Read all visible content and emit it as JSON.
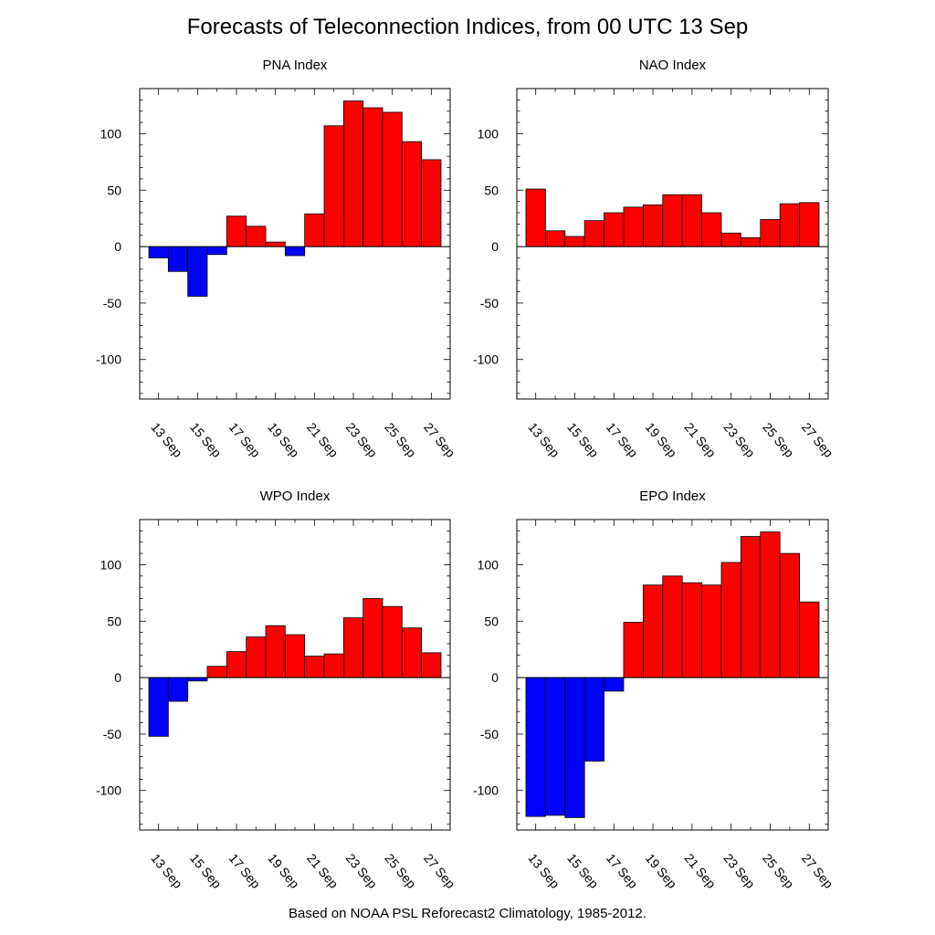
{
  "title": "Forecasts of Teleconnection Indices, from 00 UTC 13 Sep",
  "footer": "Based on NOAA PSL Reforecast2 Climatology, 1985-2012.",
  "colors": {
    "positive": "#ff0000",
    "negative": "#0000ff"
  },
  "chart_data": [
    {
      "type": "bar",
      "title": "PNA Index",
      "categories": [
        "13 Sep",
        "14 Sep",
        "15 Sep",
        "16 Sep",
        "17 Sep",
        "18 Sep",
        "19 Sep",
        "20 Sep",
        "21 Sep",
        "22 Sep",
        "23 Sep",
        "24 Sep",
        "25 Sep",
        "26 Sep",
        "27 Sep"
      ],
      "xticklabels": [
        "13 Sep",
        "15 Sep",
        "17 Sep",
        "19 Sep",
        "21 Sep",
        "23 Sep",
        "25 Sep",
        "27 Sep"
      ],
      "values": [
        -10,
        -22,
        -44,
        -7,
        27,
        18,
        4,
        -8,
        29,
        107,
        129,
        123,
        119,
        93,
        77
      ],
      "ylim": [
        -135,
        140
      ],
      "yticks": [
        -100,
        -50,
        0,
        50,
        100
      ]
    },
    {
      "type": "bar",
      "title": "NAO Index",
      "categories": [
        "13 Sep",
        "14 Sep",
        "15 Sep",
        "16 Sep",
        "17 Sep",
        "18 Sep",
        "19 Sep",
        "20 Sep",
        "21 Sep",
        "22 Sep",
        "23 Sep",
        "24 Sep",
        "25 Sep",
        "26 Sep",
        "27 Sep"
      ],
      "xticklabels": [
        "13 Sep",
        "15 Sep",
        "17 Sep",
        "19 Sep",
        "21 Sep",
        "23 Sep",
        "25 Sep",
        "27 Sep"
      ],
      "values": [
        51,
        14,
        9,
        23,
        30,
        35,
        37,
        46,
        46,
        30,
        12,
        8,
        24,
        38,
        39
      ],
      "ylim": [
        -135,
        140
      ],
      "yticks": [
        -100,
        -50,
        0,
        50,
        100
      ]
    },
    {
      "type": "bar",
      "title": "WPO Index",
      "categories": [
        "13 Sep",
        "14 Sep",
        "15 Sep",
        "16 Sep",
        "17 Sep",
        "18 Sep",
        "19 Sep",
        "20 Sep",
        "21 Sep",
        "22 Sep",
        "23 Sep",
        "24 Sep",
        "25 Sep",
        "26 Sep",
        "27 Sep"
      ],
      "xticklabels": [
        "13 Sep",
        "15 Sep",
        "17 Sep",
        "19 Sep",
        "21 Sep",
        "23 Sep",
        "25 Sep",
        "27 Sep"
      ],
      "values": [
        -52,
        -21,
        -3,
        10,
        23,
        36,
        46,
        38,
        19,
        21,
        53,
        70,
        63,
        44,
        22
      ],
      "ylim": [
        -135,
        140
      ],
      "yticks": [
        -100,
        -50,
        0,
        50,
        100
      ]
    },
    {
      "type": "bar",
      "title": "EPO Index",
      "categories": [
        "13 Sep",
        "14 Sep",
        "15 Sep",
        "16 Sep",
        "17 Sep",
        "18 Sep",
        "19 Sep",
        "20 Sep",
        "21 Sep",
        "22 Sep",
        "23 Sep",
        "24 Sep",
        "25 Sep",
        "26 Sep",
        "27 Sep"
      ],
      "xticklabels": [
        "13 Sep",
        "15 Sep",
        "17 Sep",
        "19 Sep",
        "21 Sep",
        "23 Sep",
        "25 Sep",
        "27 Sep"
      ],
      "values": [
        -123,
        -122,
        -124,
        -74,
        -12,
        49,
        82,
        90,
        84,
        82,
        102,
        125,
        129,
        110,
        67
      ],
      "ylim": [
        -135,
        140
      ],
      "yticks": [
        -100,
        -50,
        0,
        50,
        100
      ]
    }
  ]
}
